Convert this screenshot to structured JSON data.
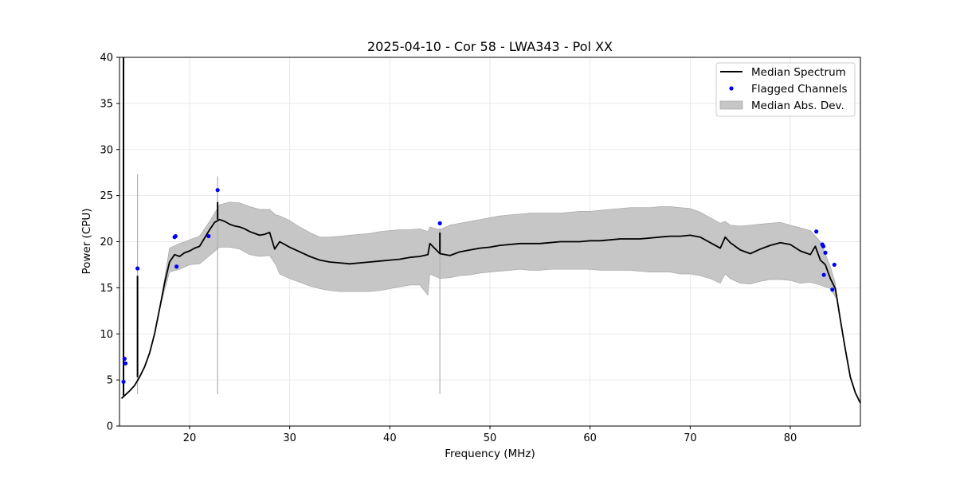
{
  "chart_data": {
    "type": "line",
    "title": "2025-04-10 - Cor 58 - LWA343 - Pol XX",
    "xlabel": "Frequency (MHz)",
    "ylabel": "Power (CPU)",
    "xlim": [
      13,
      87
    ],
    "ylim": [
      0,
      40
    ],
    "xticks": [
      20,
      30,
      40,
      50,
      60,
      70,
      80
    ],
    "yticks": [
      0,
      5,
      10,
      15,
      20,
      25,
      30,
      35,
      40
    ],
    "xtick_labels": [
      "20",
      "30",
      "40",
      "50",
      "60",
      "70",
      "80"
    ],
    "ytick_labels": [
      "0",
      "5",
      "10",
      "15",
      "20",
      "25",
      "30",
      "35",
      "40"
    ],
    "grid": true,
    "legend_position": "upper-right",
    "legend": [
      {
        "label": "Median Spectrum",
        "kind": "line",
        "color": "#000000"
      },
      {
        "label": "Flagged Channels",
        "kind": "point",
        "color": "#0000ff"
      },
      {
        "label": "Median Abs. Dev.",
        "kind": "band",
        "color": "#c6c6c6"
      }
    ],
    "series": [
      {
        "name": "Median Spectrum",
        "type": "line",
        "color": "#000000",
        "x": [
          13.2,
          13.5,
          14.0,
          14.5,
          15.0,
          15.5,
          16.0,
          16.5,
          17.0,
          17.5,
          18.0,
          18.5,
          19.0,
          19.5,
          20.0,
          20.5,
          21.0,
          21.5,
          22.0,
          22.5,
          23.0,
          23.5,
          24.0,
          24.5,
          25.0,
          25.5,
          26.0,
          26.5,
          27.0,
          27.5,
          28.0,
          28.5,
          29.0,
          30.0,
          31.0,
          32.0,
          33.0,
          34.0,
          35.0,
          36.0,
          37.0,
          38.0,
          39.0,
          40.0,
          41.0,
          42.0,
          43.0,
          43.8,
          44.0,
          45.0,
          46.0,
          47.0,
          48.0,
          49.0,
          50.0,
          51.0,
          52.0,
          53.0,
          54.0,
          55.0,
          56.0,
          57.0,
          58.0,
          59.0,
          60.0,
          61.0,
          62.0,
          63.0,
          64.0,
          65.0,
          66.0,
          67.0,
          68.0,
          69.0,
          70.0,
          71.0,
          72.0,
          73.0,
          73.5,
          74.0,
          75.0,
          76.0,
          77.0,
          78.0,
          79.0,
          80.0,
          81.0,
          82.0,
          82.5,
          83.0,
          83.5,
          84.0,
          84.5,
          85.0,
          85.5,
          86.0,
          86.5,
          87.0
        ],
        "values": [
          3.0,
          3.3,
          3.8,
          4.4,
          5.3,
          6.4,
          7.9,
          10.0,
          12.7,
          15.5,
          17.8,
          18.6,
          18.4,
          18.8,
          19.0,
          19.3,
          19.5,
          20.4,
          21.3,
          22.1,
          22.4,
          22.2,
          21.9,
          21.7,
          21.6,
          21.4,
          21.1,
          20.9,
          20.7,
          20.8,
          21.0,
          19.2,
          20.0,
          19.4,
          18.9,
          18.4,
          18.0,
          17.8,
          17.7,
          17.6,
          17.7,
          17.8,
          17.9,
          18.0,
          18.1,
          18.3,
          18.4,
          18.6,
          19.8,
          18.7,
          18.5,
          18.9,
          19.1,
          19.3,
          19.4,
          19.6,
          19.7,
          19.8,
          19.8,
          19.8,
          19.9,
          20.0,
          20.0,
          20.0,
          20.1,
          20.1,
          20.2,
          20.3,
          20.3,
          20.3,
          20.4,
          20.5,
          20.6,
          20.6,
          20.7,
          20.5,
          19.9,
          19.3,
          20.5,
          19.9,
          19.1,
          18.7,
          19.2,
          19.6,
          19.9,
          19.7,
          19.0,
          18.6,
          19.5,
          18.0,
          17.5,
          16.0,
          14.9,
          11.5,
          8.3,
          5.3,
          3.6,
          2.5
        ]
      },
      {
        "name": "Median Abs. Dev.",
        "type": "band",
        "color": "#c6c6c6",
        "x": [
          17.0,
          18.0,
          19.0,
          20.0,
          21.0,
          22.0,
          23.0,
          24.0,
          25.0,
          26.0,
          27.0,
          28.0,
          28.6,
          29.0,
          30.0,
          31.0,
          32.0,
          33.0,
          34.0,
          35.0,
          36.0,
          37.0,
          38.0,
          39.0,
          40.0,
          41.0,
          42.0,
          43.0,
          43.8,
          44.0,
          45.0,
          46.0,
          47.0,
          48.0,
          49.0,
          50.0,
          51.0,
          52.0,
          53.0,
          54.0,
          55.0,
          56.0,
          57.0,
          58.0,
          59.0,
          60.0,
          61.0,
          62.0,
          63.0,
          64.0,
          65.0,
          66.0,
          67.0,
          68.0,
          69.0,
          70.0,
          71.0,
          72.0,
          73.0,
          73.5,
          74.0,
          75.0,
          76.0,
          77.0,
          78.0,
          79.0,
          80.0,
          81.0,
          82.0,
          83.0,
          84.0,
          84.5
        ],
        "lower": [
          12.7,
          16.7,
          17.0,
          17.5,
          17.6,
          18.5,
          19.4,
          19.4,
          19.2,
          18.6,
          18.4,
          18.5,
          17.5,
          16.5,
          16.0,
          15.6,
          15.2,
          14.9,
          14.7,
          14.6,
          14.6,
          14.6,
          14.6,
          14.7,
          14.9,
          15.1,
          15.3,
          15.3,
          14.2,
          16.5,
          16.0,
          16.1,
          16.3,
          16.4,
          16.6,
          16.7,
          16.8,
          16.9,
          17.0,
          16.9,
          16.9,
          17.0,
          17.0,
          17.0,
          17.0,
          17.0,
          16.9,
          16.9,
          16.9,
          16.9,
          16.8,
          16.7,
          16.7,
          16.7,
          16.5,
          16.5,
          16.3,
          16.0,
          15.5,
          16.5,
          16.0,
          15.5,
          15.4,
          15.7,
          15.9,
          15.9,
          15.8,
          15.5,
          15.6,
          15.3,
          14.9,
          14.0
        ],
        "upper": [
          12.7,
          19.3,
          19.8,
          20.2,
          20.6,
          22.2,
          24.0,
          24.3,
          24.2,
          23.8,
          23.5,
          23.5,
          22.9,
          22.8,
          22.3,
          21.6,
          21.0,
          20.5,
          20.5,
          20.6,
          20.7,
          20.8,
          20.9,
          21.1,
          21.2,
          21.3,
          21.3,
          21.4,
          21.1,
          21.6,
          21.3,
          21.8,
          22.0,
          22.2,
          22.4,
          22.6,
          22.8,
          22.9,
          23.0,
          23.1,
          23.1,
          23.1,
          23.1,
          23.2,
          23.3,
          23.3,
          23.4,
          23.5,
          23.6,
          23.7,
          23.7,
          23.7,
          23.8,
          23.8,
          23.7,
          23.6,
          23.2,
          22.6,
          22.0,
          22.2,
          21.8,
          21.7,
          21.8,
          21.9,
          22.0,
          22.1,
          21.8,
          21.5,
          21.2,
          20.0,
          17.3,
          15.5
        ]
      },
      {
        "name": "Flagged Channels",
        "type": "scatter",
        "color": "#0000ff",
        "x": [
          13.4,
          13.5,
          13.6,
          14.8,
          18.5,
          18.6,
          18.7,
          21.9,
          22.8,
          45.0,
          82.6,
          83.2,
          83.3,
          83.35,
          83.5,
          84.2,
          84.4
        ],
        "values": [
          4.8,
          7.3,
          6.8,
          17.1,
          20.5,
          20.6,
          17.3,
          20.6,
          25.6,
          22.0,
          21.1,
          19.7,
          19.5,
          16.4,
          18.8,
          14.8,
          17.5
        ]
      }
    ],
    "spikes": [
      {
        "x": 13.4,
        "median_peak": 40,
        "band_peak": 9.8
      },
      {
        "x": 14.8,
        "median_peak": 16.3,
        "band_peak": 27.3
      },
      {
        "x": 22.8,
        "median_peak": 24.3,
        "band_peak": 27.1
      },
      {
        "x": 45.0,
        "median_peak": 21.0,
        "band_peak": 21.5
      }
    ]
  }
}
